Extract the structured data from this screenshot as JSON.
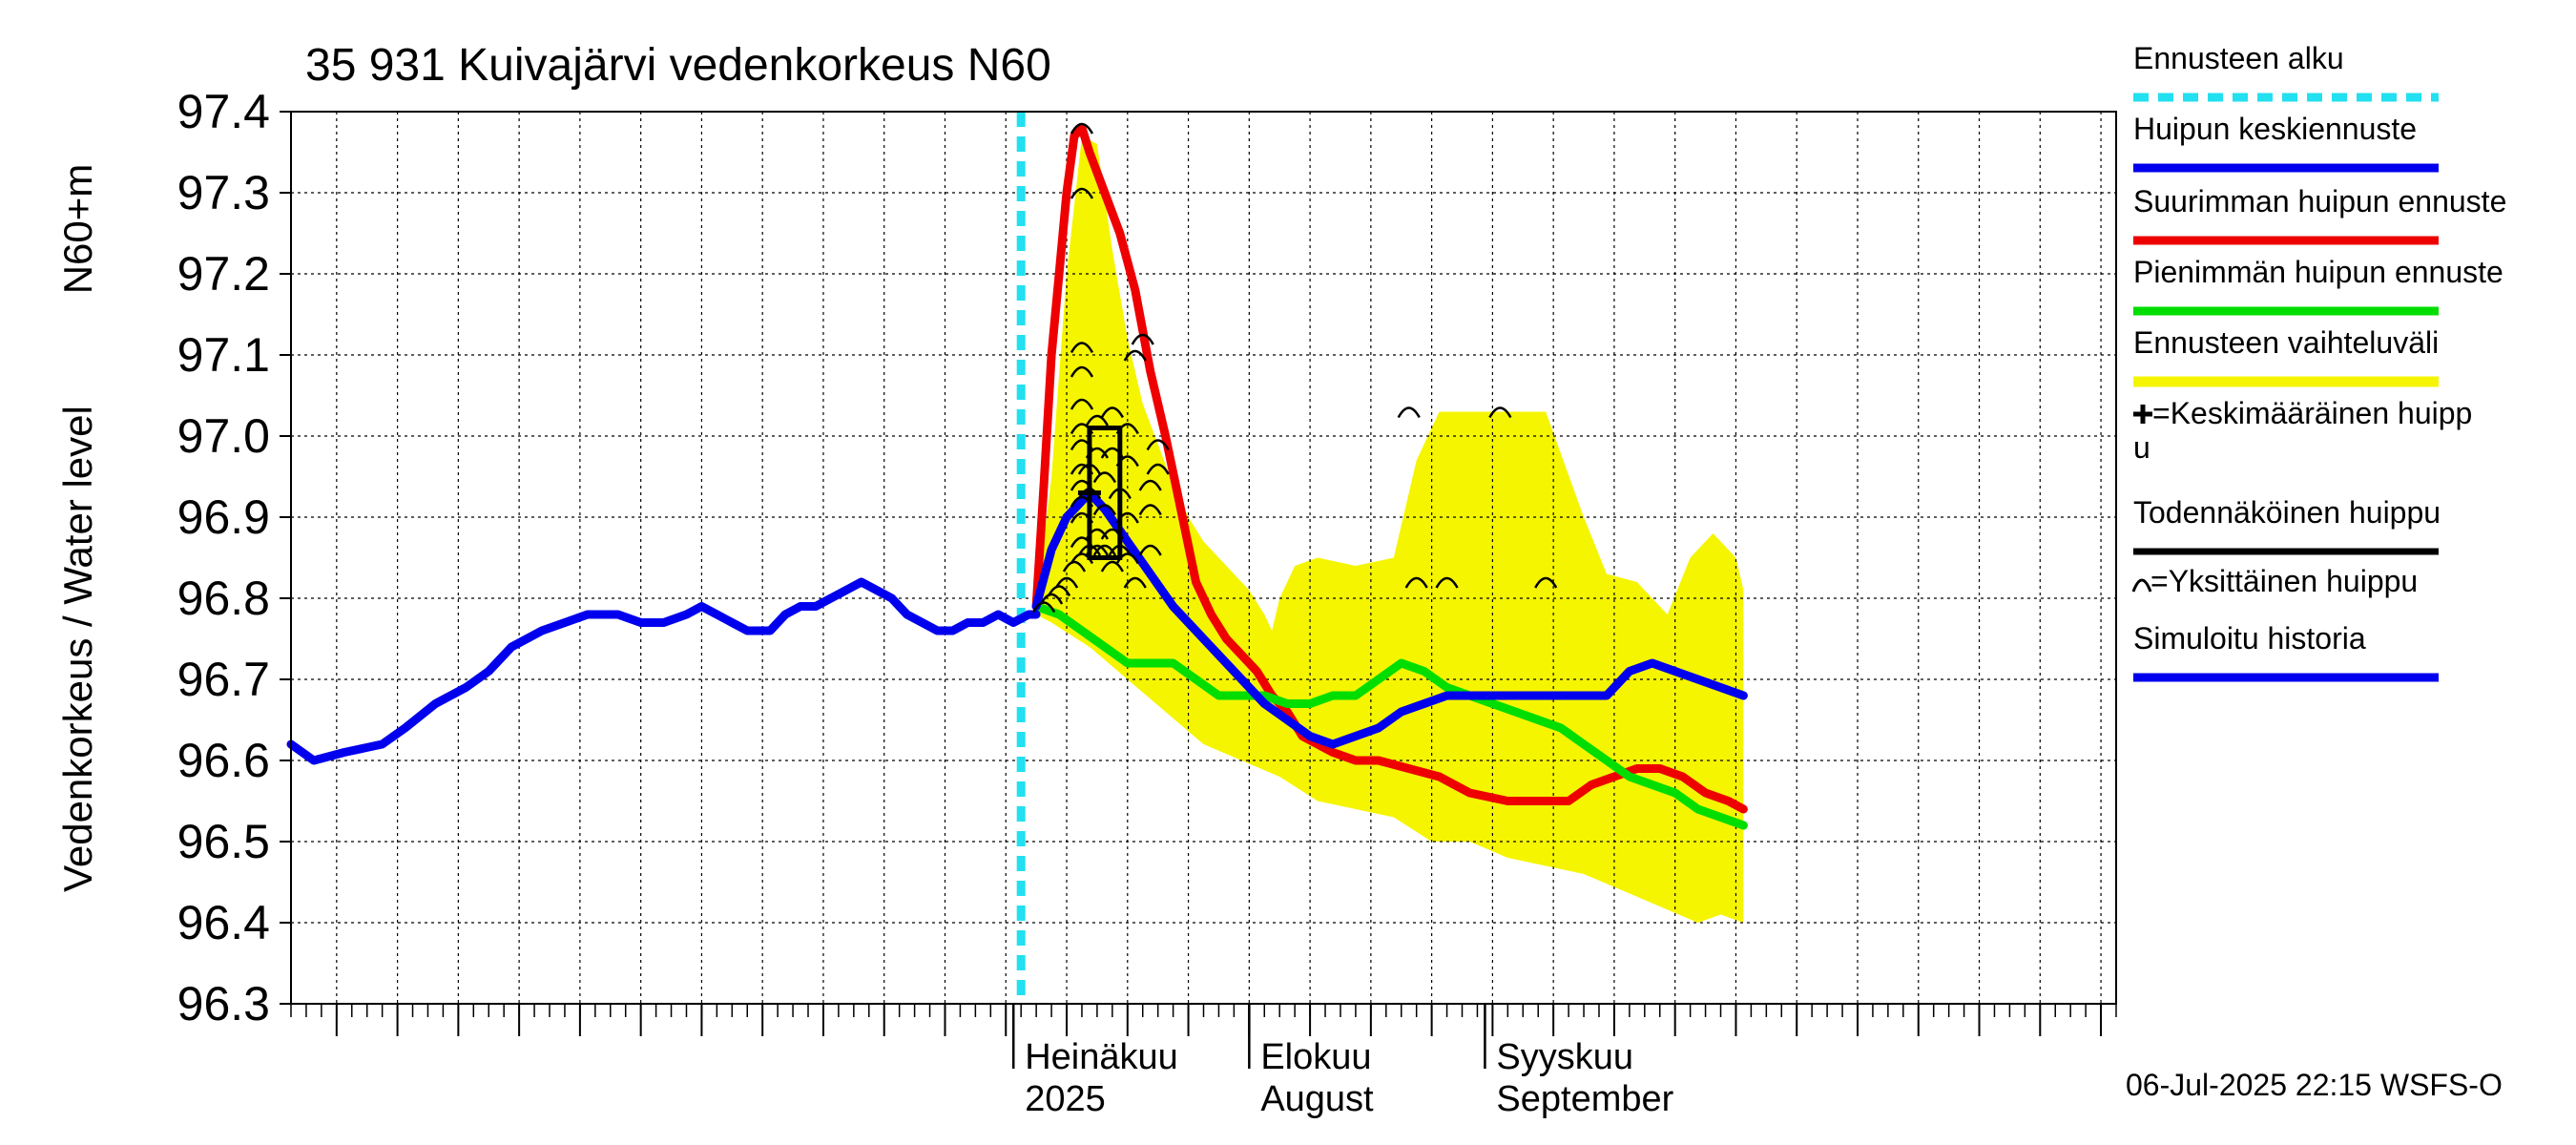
{
  "chart_data": {
    "type": "line",
    "title": "35 931 Kuivajärvi vedenkorkeus N60",
    "ylabel_left": "Vedenkorkeus / Water level",
    "ylabel_right": "N60+m",
    "ylim": [
      96.3,
      97.4
    ],
    "yticks": [
      "96.3",
      "96.4",
      "96.5",
      "96.6",
      "96.7",
      "96.8",
      "96.9",
      "97.0",
      "97.1",
      "97.2",
      "97.3",
      "97.4"
    ],
    "xlim": [
      -95,
      145
    ],
    "x_unit": "days relative to 2025-07-01",
    "month_labels": [
      {
        "x": 0,
        "line1": "Heinäkuu",
        "line2": "2025"
      },
      {
        "x": 31,
        "line1": "Elokuu",
        "line2": "August"
      },
      {
        "x": 62,
        "line1": "Syyskuu",
        "line2": "September"
      }
    ],
    "footer": "06-Jul-2025 22:15 WSFS-O",
    "grid": true,
    "forecast_start_x": 1,
    "legend_placement": "right",
    "legend": [
      {
        "key": "forecast_start",
        "label": "Ennusteen alku",
        "color": "#22E0F0"
      },
      {
        "key": "mean",
        "label": "Huipun keskiennuste",
        "color": "#0000EE"
      },
      {
        "key": "max",
        "label": "Suurimman huipun ennuste",
        "color": "#EE0000"
      },
      {
        "key": "min",
        "label": "Pienimmän huipun ennuste",
        "color": "#00DD00"
      },
      {
        "key": "band",
        "label": "Ennusteen vaihteluväli",
        "color": "#F5F500"
      },
      {
        "key": "avg_peak",
        "label": "=Keskimääräinen huippu",
        "color": "#000000"
      },
      {
        "key": "prob_peak",
        "label": "Todennäköinen huippu",
        "color": "#000000"
      },
      {
        "key": "single_peak",
        "label": "=Yksittäinen huippu",
        "color": "#000000"
      },
      {
        "key": "history",
        "label": "Simuloitu historia",
        "color": "#0000EE"
      }
    ],
    "band_upper": [
      [
        3,
        96.79
      ],
      [
        5,
        96.95
      ],
      [
        7,
        97.2
      ],
      [
        9,
        97.37
      ],
      [
        11,
        97.36
      ],
      [
        13,
        97.23
      ],
      [
        15,
        97.12
      ],
      [
        17,
        97.04
      ],
      [
        19,
        96.99
      ],
      [
        21,
        96.94
      ],
      [
        23,
        96.9
      ],
      [
        25,
        96.87
      ],
      [
        27,
        96.85
      ],
      [
        29,
        96.83
      ],
      [
        31,
        96.81
      ],
      [
        33,
        96.78
      ],
      [
        34,
        96.76
      ],
      [
        35,
        96.8
      ],
      [
        37,
        96.84
      ],
      [
        40,
        96.85
      ],
      [
        45,
        96.84
      ],
      [
        50,
        96.85
      ],
      [
        53,
        96.97
      ],
      [
        56,
        97.03
      ],
      [
        60,
        97.03
      ],
      [
        65,
        97.03
      ],
      [
        70,
        97.03
      ],
      [
        75,
        96.9
      ],
      [
        78,
        96.83
      ],
      [
        82,
        96.82
      ],
      [
        86,
        96.78
      ],
      [
        89,
        96.85
      ],
      [
        92,
        96.88
      ],
      [
        95,
        96.85
      ],
      [
        96,
        96.81
      ]
    ],
    "band_lower": [
      [
        96,
        96.4
      ],
      [
        93,
        96.41
      ],
      [
        90,
        96.4
      ],
      [
        85,
        96.42
      ],
      [
        80,
        96.44
      ],
      [
        75,
        96.46
      ],
      [
        70,
        96.47
      ],
      [
        65,
        96.48
      ],
      [
        60,
        96.5
      ],
      [
        55,
        96.5
      ],
      [
        50,
        96.53
      ],
      [
        45,
        96.54
      ],
      [
        40,
        96.55
      ],
      [
        35,
        96.58
      ],
      [
        30,
        96.6
      ],
      [
        25,
        96.62
      ],
      [
        20,
        96.66
      ],
      [
        15,
        96.7
      ],
      [
        10,
        96.74
      ],
      [
        5,
        96.77
      ],
      [
        3,
        96.78
      ]
    ],
    "series": [
      {
        "key": "history",
        "color": "#0000EE",
        "values": [
          [
            -95,
            96.62
          ],
          [
            -92,
            96.6
          ],
          [
            -88,
            96.61
          ],
          [
            -83,
            96.62
          ],
          [
            -80,
            96.64
          ],
          [
            -76,
            96.67
          ],
          [
            -72,
            96.69
          ],
          [
            -69,
            96.71
          ],
          [
            -66,
            96.74
          ],
          [
            -62,
            96.76
          ],
          [
            -59,
            96.77
          ],
          [
            -56,
            96.78
          ],
          [
            -52,
            96.78
          ],
          [
            -49,
            96.77
          ],
          [
            -46,
            96.77
          ],
          [
            -43,
            96.78
          ],
          [
            -41,
            96.79
          ],
          [
            -39,
            96.78
          ],
          [
            -37,
            96.77
          ],
          [
            -35,
            96.76
          ],
          [
            -32,
            96.76
          ],
          [
            -30,
            96.78
          ],
          [
            -28,
            96.79
          ],
          [
            -26,
            96.79
          ],
          [
            -24,
            96.8
          ],
          [
            -22,
            96.81
          ],
          [
            -20,
            96.82
          ],
          [
            -18,
            96.81
          ],
          [
            -16,
            96.8
          ],
          [
            -14,
            96.78
          ],
          [
            -12,
            96.77
          ],
          [
            -10,
            96.76
          ],
          [
            -8,
            96.76
          ],
          [
            -6,
            96.77
          ],
          [
            -4,
            96.77
          ],
          [
            -2,
            96.78
          ],
          [
            0,
            96.77
          ],
          [
            2,
            96.78
          ],
          [
            3,
            96.78
          ]
        ]
      },
      {
        "key": "max",
        "color": "#EE0000",
        "values": [
          [
            3,
            96.79
          ],
          [
            4,
            96.94
          ],
          [
            5,
            97.1
          ],
          [
            6,
            97.2
          ],
          [
            7,
            97.3
          ],
          [
            8,
            97.37
          ],
          [
            9,
            97.38
          ],
          [
            10,
            97.35
          ],
          [
            12,
            97.3
          ],
          [
            14,
            97.25
          ],
          [
            16,
            97.18
          ],
          [
            18,
            97.08
          ],
          [
            20,
            97.0
          ],
          [
            22,
            96.91
          ],
          [
            24,
            96.82
          ],
          [
            26,
            96.78
          ],
          [
            28,
            96.75
          ],
          [
            30,
            96.73
          ],
          [
            32,
            96.71
          ],
          [
            34,
            96.68
          ],
          [
            36,
            96.66
          ],
          [
            38,
            96.63
          ],
          [
            40,
            96.62
          ],
          [
            42,
            96.61
          ],
          [
            45,
            96.6
          ],
          [
            48,
            96.6
          ],
          [
            52,
            96.59
          ],
          [
            56,
            96.58
          ],
          [
            58,
            96.57
          ],
          [
            60,
            96.56
          ],
          [
            65,
            96.55
          ],
          [
            70,
            96.55
          ],
          [
            73,
            96.55
          ],
          [
            76,
            96.57
          ],
          [
            79,
            96.58
          ],
          [
            82,
            96.59
          ],
          [
            85,
            96.59
          ],
          [
            88,
            96.58
          ],
          [
            91,
            96.56
          ],
          [
            94,
            96.55
          ],
          [
            96,
            96.54
          ]
        ]
      },
      {
        "key": "mean",
        "color": "#0000EE",
        "values": [
          [
            3,
            96.79
          ],
          [
            5,
            96.86
          ],
          [
            7,
            96.9
          ],
          [
            9,
            96.92
          ],
          [
            10,
            96.93
          ],
          [
            12,
            96.91
          ],
          [
            15,
            96.87
          ],
          [
            18,
            96.83
          ],
          [
            21,
            96.79
          ],
          [
            24,
            96.76
          ],
          [
            27,
            96.73
          ],
          [
            30,
            96.7
          ],
          [
            33,
            96.67
          ],
          [
            36,
            96.65
          ],
          [
            39,
            96.63
          ],
          [
            42,
            96.62
          ],
          [
            45,
            96.63
          ],
          [
            48,
            96.64
          ],
          [
            51,
            96.66
          ],
          [
            54,
            96.67
          ],
          [
            57,
            96.68
          ],
          [
            60,
            96.68
          ],
          [
            63,
            96.68
          ],
          [
            66,
            96.68
          ],
          [
            69,
            96.68
          ],
          [
            72,
            96.68
          ],
          [
            75,
            96.68
          ],
          [
            78,
            96.68
          ],
          [
            81,
            96.71
          ],
          [
            84,
            96.72
          ],
          [
            87,
            96.71
          ],
          [
            90,
            96.7
          ],
          [
            93,
            96.69
          ],
          [
            96,
            96.68
          ]
        ]
      },
      {
        "key": "min",
        "color": "#00DD00",
        "values": [
          [
            3,
            96.79
          ],
          [
            6,
            96.78
          ],
          [
            9,
            96.76
          ],
          [
            12,
            96.74
          ],
          [
            15,
            96.72
          ],
          [
            18,
            96.72
          ],
          [
            21,
            96.72
          ],
          [
            24,
            96.7
          ],
          [
            27,
            96.68
          ],
          [
            30,
            96.68
          ],
          [
            33,
            96.68
          ],
          [
            36,
            96.67
          ],
          [
            39,
            96.67
          ],
          [
            42,
            96.68
          ],
          [
            45,
            96.68
          ],
          [
            48,
            96.7
          ],
          [
            51,
            96.72
          ],
          [
            54,
            96.71
          ],
          [
            57,
            96.69
          ],
          [
            60,
            96.68
          ],
          [
            63,
            96.67
          ],
          [
            66,
            96.66
          ],
          [
            69,
            96.65
          ],
          [
            72,
            96.64
          ],
          [
            75,
            96.62
          ],
          [
            78,
            96.6
          ],
          [
            81,
            96.58
          ],
          [
            84,
            96.57
          ],
          [
            87,
            96.56
          ],
          [
            90,
            96.54
          ],
          [
            93,
            96.53
          ],
          [
            96,
            96.52
          ]
        ]
      }
    ],
    "single_peaks": [
      [
        9,
        97.38
      ],
      [
        9,
        97.3
      ],
      [
        9,
        97.11
      ],
      [
        9,
        97.08
      ],
      [
        9,
        97.04
      ],
      [
        9,
        97.01
      ],
      [
        9,
        96.99
      ],
      [
        9,
        96.96
      ],
      [
        9,
        96.94
      ],
      [
        9,
        96.92
      ],
      [
        9,
        96.9
      ],
      [
        9,
        96.87
      ],
      [
        9,
        96.85
      ],
      [
        10,
        96.86
      ],
      [
        10,
        96.93
      ],
      [
        10,
        96.96
      ],
      [
        11,
        96.98
      ],
      [
        11,
        97.02
      ],
      [
        11,
        96.88
      ],
      [
        11,
        96.86
      ],
      [
        12,
        96.86
      ],
      [
        12,
        96.91
      ],
      [
        12,
        96.95
      ],
      [
        13,
        96.98
      ],
      [
        13,
        97.03
      ],
      [
        13,
        96.88
      ],
      [
        13,
        96.84
      ],
      [
        14,
        96.86
      ],
      [
        14,
        96.93
      ],
      [
        15,
        96.97
      ],
      [
        15,
        96.9
      ],
      [
        15,
        96.85
      ],
      [
        15,
        97.01
      ],
      [
        16,
        97.1
      ],
      [
        16,
        96.82
      ],
      [
        17,
        97.12
      ],
      [
        18,
        96.91
      ],
      [
        18,
        96.94
      ],
      [
        18,
        96.86
      ],
      [
        19,
        96.96
      ],
      [
        19,
        96.99
      ],
      [
        4,
        96.79
      ],
      [
        5,
        96.8
      ],
      [
        6,
        96.81
      ],
      [
        7,
        96.82
      ],
      [
        8,
        96.84
      ],
      [
        52,
        97.03
      ],
      [
        53,
        96.82
      ],
      [
        57,
        96.82
      ],
      [
        64,
        97.03
      ],
      [
        70,
        96.82
      ]
    ],
    "mean_peak": [
      10,
      96.93
    ],
    "probable_peak_box": {
      "x0": 10,
      "x1": 14,
      "y0": 96.85,
      "y1": 97.01
    }
  }
}
